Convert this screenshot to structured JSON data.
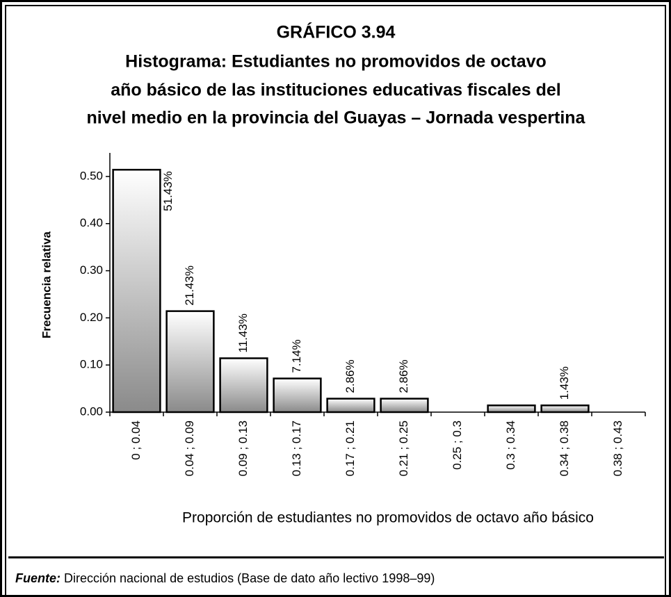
{
  "chart_data": {
    "type": "bar",
    "title": "GRÁFICO 3.94",
    "subtitle": [
      "Histograma: Estudiantes no promovidos de octavo",
      "año básico de  las instituciones educativas fiscales del",
      "nivel medio en la provincia del Guayas – Jornada vespertina"
    ],
    "x_label": "Proporción de estudiantes no promovidos de octavo año básico",
    "y_label": "Frecuencia  relativa",
    "categories": [
      "0 ; 0.04",
      "0.04 ; 0.09",
      "0.09 ; 0.13",
      "0.13 ; 0.17",
      "0.17 ; 0.21",
      "0.21 ; 0.25",
      "0.25 ; 0.3",
      "0.3 ; 0.34",
      "0.34 ; 0.38",
      "0.38 ; 0.43"
    ],
    "values": [
      0.5143,
      0.2143,
      0.1143,
      0.0714,
      0.0286,
      0.0286,
      0,
      0.0143,
      0.0143,
      0
    ],
    "value_labels": [
      "51.43%",
      "21.43%",
      "11.43%",
      "7.14%",
      "2.86%",
      "2.86%",
      null,
      null,
      "1.43%",
      null
    ],
    "ylim": [
      0,
      0.55
    ],
    "yticks": [
      {
        "value": 0,
        "label": "0.00"
      },
      {
        "value": 0.1,
        "label": "0.10"
      },
      {
        "value": 0.2,
        "label": "0.20"
      },
      {
        "value": 0.3,
        "label": "0.30"
      },
      {
        "value": 0.4,
        "label": "0.40"
      },
      {
        "value": 0.5,
        "label": "0.50"
      }
    ],
    "source_label": "Fuente:",
    "source": "Dirección nacional de estudios (Base de dato año lectivo 1998–99)"
  }
}
